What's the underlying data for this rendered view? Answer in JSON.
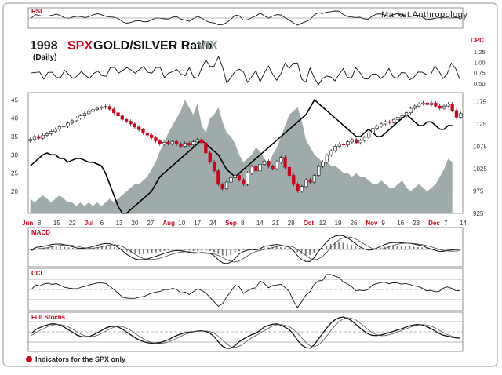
{
  "brand": "Market Anthropology",
  "title": {
    "year": "1998",
    "spx": "SPX",
    "goldsilver": "GOLD/SILVER Ratio",
    "vix": "VIX",
    "period": "(Daily)"
  },
  "panels": {
    "rsi": "RSI",
    "cpc": "CPC",
    "macd": "MACD",
    "cci": "CCI",
    "stochs": "Full Stochs"
  },
  "footer_note": "Indicators for the SPX only",
  "colors": {
    "up": "#ffffff",
    "down": "#d0021b",
    "vix_fill": "#9aa7a5",
    "ratio_line": "#000000",
    "brand_red": "#d0021b",
    "vix_text": "#8a9494"
  },
  "chart_data": {
    "type": "candlestick",
    "x_labels": [
      {
        "label": "Jun",
        "color": "red"
      },
      {
        "label": "8"
      },
      {
        "label": "15"
      },
      {
        "label": "22"
      },
      {
        "label": "Jul",
        "color": "red"
      },
      {
        "label": "6"
      },
      {
        "label": "13"
      },
      {
        "label": "20"
      },
      {
        "label": "27"
      },
      {
        "label": "Aug",
        "color": "red"
      },
      {
        "label": "10"
      },
      {
        "label": "17"
      },
      {
        "label": "24"
      },
      {
        "label": "Sep",
        "color": "red"
      },
      {
        "label": "8"
      },
      {
        "label": "14"
      },
      {
        "label": "21"
      },
      {
        "label": "28"
      },
      {
        "label": "Oct",
        "color": "red"
      },
      {
        "label": "12"
      },
      {
        "label": "19"
      },
      {
        "label": "26"
      },
      {
        "label": "Nov",
        "color": "red"
      },
      {
        "label": "9"
      },
      {
        "label": "16"
      },
      {
        "label": "23"
      },
      {
        "label": "Dec",
        "color": "red"
      },
      {
        "label": "7"
      },
      {
        "label": "14"
      }
    ],
    "left_axis_ticks": [
      "45",
      "40",
      "35",
      "30",
      "25",
      "20"
    ],
    "right_axis_ticks": [
      "1175",
      "1125",
      "1075",
      "1025",
      "975",
      "925"
    ],
    "cpc_ticks": [
      "1.25",
      "1.00",
      "0.75",
      "0.50"
    ],
    "spx": {
      "name": "SPX",
      "ylim": [
        925,
        1195
      ],
      "close": [
        1090,
        1097,
        1093,
        1100,
        1103,
        1108,
        1113,
        1119,
        1120,
        1127,
        1132,
        1138,
        1143,
        1148,
        1153,
        1157,
        1160,
        1162,
        1164,
        1158,
        1150,
        1143,
        1135,
        1131,
        1125,
        1118,
        1112,
        1105,
        1100,
        1094,
        1087,
        1080,
        1084,
        1081,
        1086,
        1080,
        1075,
        1082,
        1078,
        1085,
        1090,
        1083,
        1060,
        1040,
        1020,
        990,
        980,
        995,
        1005,
        1010,
        1000,
        990,
        1015,
        1030,
        1020,
        1035,
        1042,
        1030,
        1025,
        1040,
        1050,
        1028,
        1010,
        990,
        975,
        985,
        1000,
        995,
        1010,
        1030,
        1040,
        1055,
        1065,
        1075,
        1080,
        1078,
        1085,
        1090,
        1083,
        1088,
        1095,
        1105,
        1115,
        1120,
        1125,
        1130,
        1128,
        1135,
        1140,
        1143,
        1150,
        1160,
        1165,
        1170,
        1172,
        1168,
        1172,
        1165,
        1160,
        1165,
        1170,
        1155,
        1140,
        1148
      ]
    },
    "gold_silver_ratio": {
      "name": "GOLD/SILVER Ratio",
      "ylim": [
        14,
        47
      ],
      "values": [
        27,
        28,
        29,
        30,
        30.5,
        30,
        30,
        29,
        29,
        28,
        28.5,
        29,
        29,
        28.5,
        28,
        28,
        27.5,
        27,
        25,
        22,
        19,
        16,
        14,
        14,
        15,
        16,
        17,
        18,
        19,
        20,
        22,
        24,
        25,
        26,
        27,
        28,
        29,
        30,
        31,
        32,
        33,
        34,
        33,
        32,
        31,
        30,
        28,
        26,
        25,
        24,
        25,
        26,
        27,
        28,
        29,
        30,
        31,
        32,
        33,
        34,
        35,
        36,
        37,
        38,
        39,
        40,
        41,
        43,
        45,
        44,
        43,
        42,
        41,
        40,
        39,
        38,
        37,
        36,
        35,
        35,
        36,
        37,
        36,
        35,
        35,
        36,
        37,
        38,
        39,
        40,
        41,
        40,
        39,
        38,
        38,
        39,
        39,
        38,
        37,
        37,
        38,
        38
      ]
    },
    "vix": {
      "name": "VIX",
      "ylim": [
        14,
        47
      ],
      "values": [
        18,
        17,
        18,
        19,
        18,
        17,
        18,
        19,
        18,
        17,
        17,
        16,
        17,
        16,
        17,
        16,
        17,
        16,
        17,
        18,
        17,
        18,
        19,
        20,
        21,
        22,
        22,
        23,
        24,
        26,
        28,
        31,
        33,
        36,
        38,
        40,
        42,
        45,
        43,
        41,
        44,
        38,
        36,
        40,
        41,
        43,
        39,
        36,
        35,
        33,
        30,
        28,
        29,
        30,
        32,
        31,
        29,
        27,
        30,
        32,
        35,
        38,
        41,
        42,
        43,
        39,
        34,
        32,
        30,
        29,
        28,
        28,
        27,
        27,
        26,
        25,
        25,
        24,
        25,
        24,
        24,
        23,
        22,
        22,
        23,
        22,
        21,
        21,
        22,
        23,
        21,
        20,
        21,
        22,
        21,
        20,
        21,
        22,
        24,
        26,
        29,
        28
      ]
    }
  }
}
